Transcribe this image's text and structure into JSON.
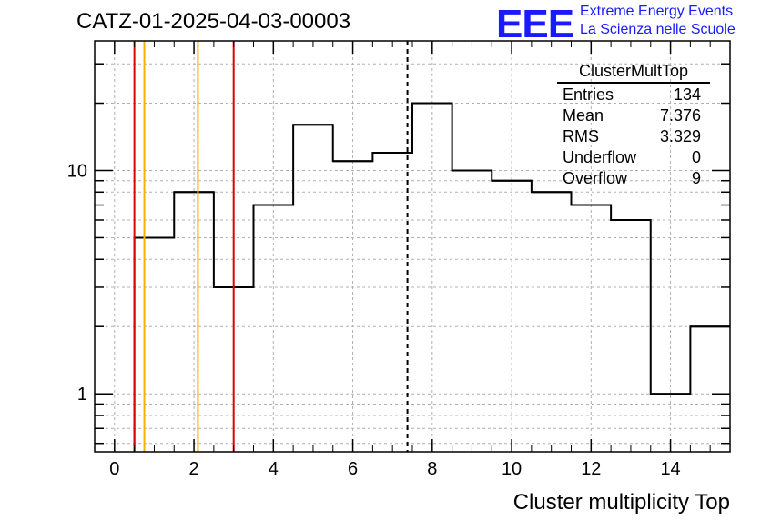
{
  "header": {
    "title": "CATZ-01-2025-04-03-00003",
    "logo_text": "EEE",
    "logo_line1": "Extreme Energy Events",
    "logo_line2": "La Scienza nelle Scuole"
  },
  "stats_box": {
    "title": "ClusterMultTop",
    "rows": [
      {
        "label": "Entries",
        "value": "134"
      },
      {
        "label": "Mean",
        "value": "7.376"
      },
      {
        "label": "RMS",
        "value": "3.329"
      },
      {
        "label": "Underflow",
        "value": "0"
      },
      {
        "label": "Overflow",
        "value": "9"
      }
    ]
  },
  "chart_data": {
    "type": "histogram",
    "title": "CATZ-01-2025-04-03-00003",
    "xlabel": "Cluster multiplicity Top",
    "ylabel": "",
    "xlim": [
      -0.5,
      15.5
    ],
    "ylim": [
      0.55,
      38
    ],
    "y_scale": "log",
    "grid": true,
    "x_ticks": [
      0,
      2,
      4,
      6,
      8,
      10,
      12,
      14
    ],
    "y_ticks": [
      1,
      10
    ],
    "bins": {
      "edges": [
        0.5,
        1.5,
        2.5,
        3.5,
        4.5,
        5.5,
        6.5,
        7.5,
        8.5,
        9.5,
        10.5,
        11.5,
        12.5,
        13.5,
        14.5,
        15.5
      ],
      "counts": [
        5,
        8,
        3,
        7,
        16,
        11,
        12,
        20,
        10,
        9,
        8,
        7,
        6,
        1,
        2
      ]
    },
    "vertical_lines": [
      {
        "x": 0.5,
        "color": "#e00000",
        "style": "solid"
      },
      {
        "x": 0.75,
        "color": "#f0b400",
        "style": "solid"
      },
      {
        "x": 2.1,
        "color": "#f0b400",
        "style": "solid"
      },
      {
        "x": 3.0,
        "color": "#e00000",
        "style": "solid"
      },
      {
        "x": 7.376,
        "color": "#000000",
        "style": "dashed"
      }
    ]
  }
}
